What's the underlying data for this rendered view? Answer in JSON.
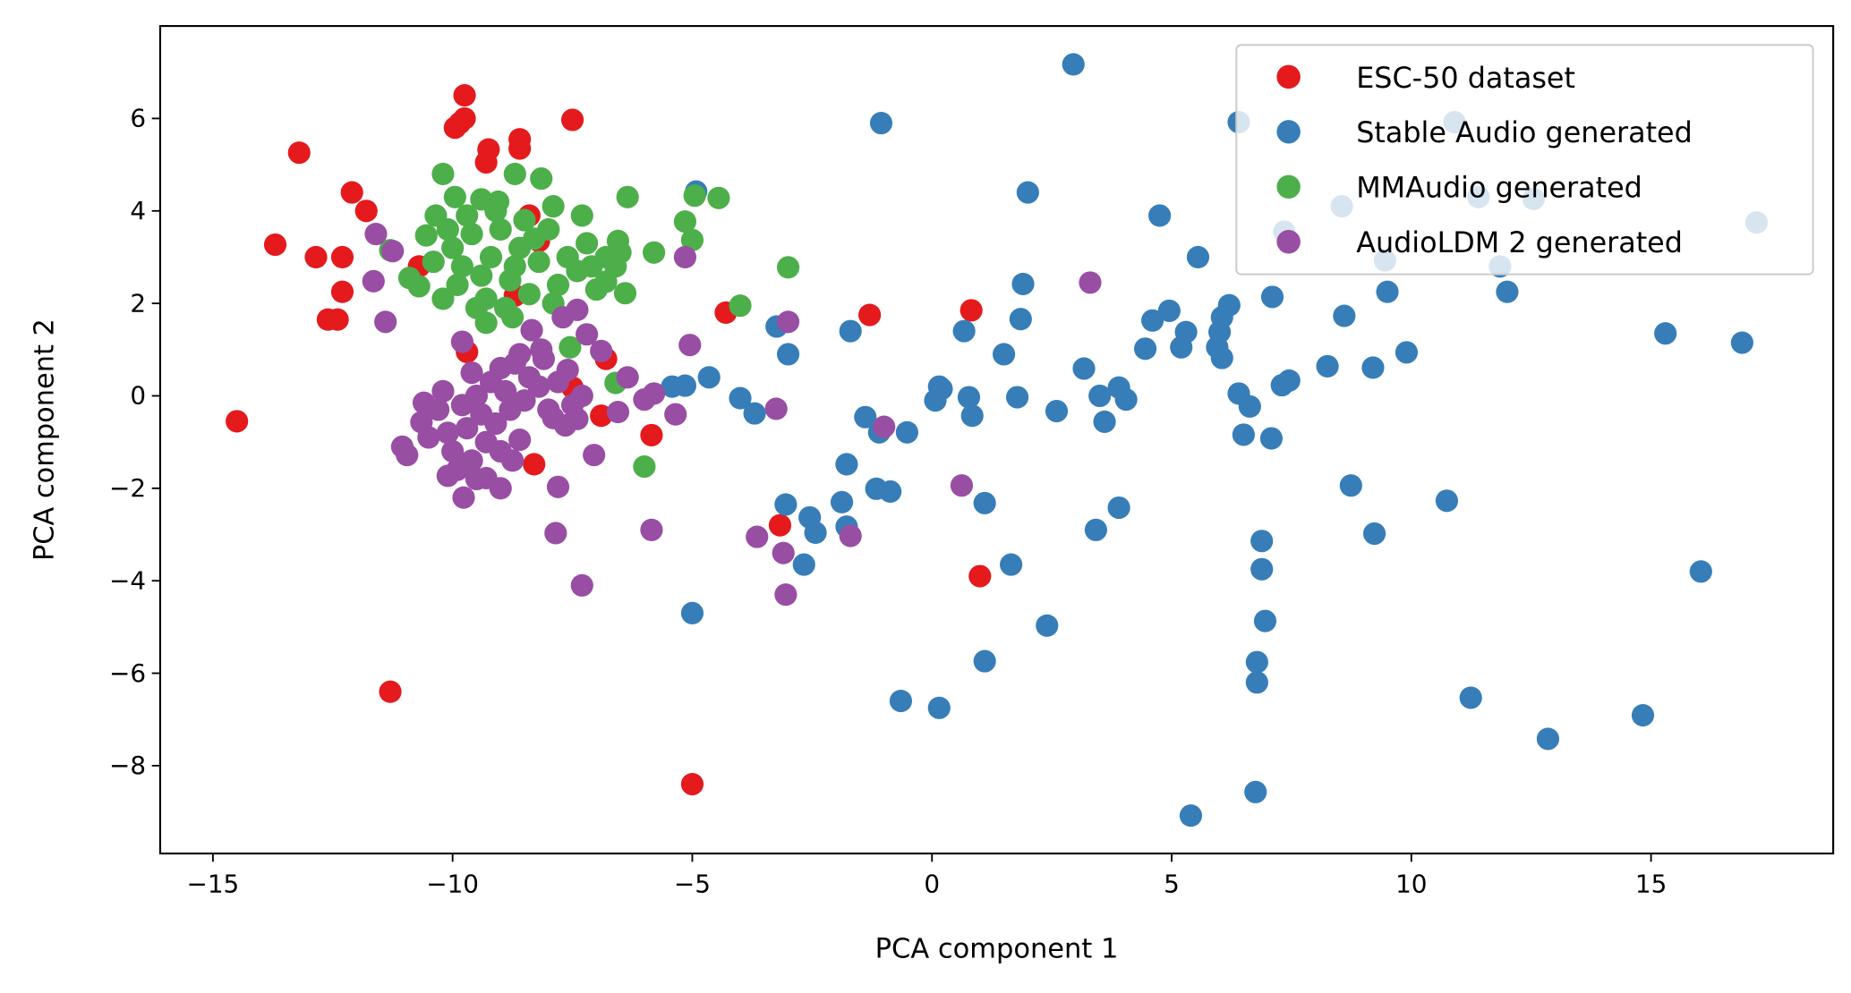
{
  "chart_data": {
    "type": "scatter",
    "title": "",
    "xlabel": "PCA component 1",
    "ylabel": "PCA component 2",
    "xlim": [
      -16.1,
      18.8
    ],
    "ylim": [
      -9.9,
      8.0
    ],
    "xticks": [
      -15,
      -10,
      -5,
      0,
      5,
      10,
      15
    ],
    "yticks": [
      -8,
      -6,
      -4,
      -2,
      0,
      2,
      4,
      6
    ],
    "xtick_labels": [
      "−15",
      "−10",
      "−5",
      "0",
      "5",
      "10",
      "15"
    ],
    "ytick_labels": [
      "−8",
      "−6",
      "−4",
      "−2",
      "0",
      "2",
      "4",
      "6"
    ],
    "grid": false,
    "legend_placement": "top-right",
    "series": [
      {
        "name": "ESC-50 dataset",
        "color": "#e41a1c",
        "points": [
          [
            -14.5,
            -0.55
          ],
          [
            -13.7,
            3.27
          ],
          [
            -13.2,
            5.26
          ],
          [
            -12.85,
            3.0
          ],
          [
            -12.6,
            1.65
          ],
          [
            -12.4,
            1.65
          ],
          [
            -12.3,
            3.0
          ],
          [
            -12.3,
            2.25
          ],
          [
            -12.1,
            4.4
          ],
          [
            -11.8,
            4.0
          ],
          [
            -11.3,
            -6.4
          ],
          [
            -10.7,
            2.8
          ],
          [
            -9.95,
            5.8
          ],
          [
            -9.75,
            6.5
          ],
          [
            -9.75,
            6.0
          ],
          [
            -9.85,
            5.9
          ],
          [
            -9.3,
            5.05
          ],
          [
            -9.25,
            5.33
          ],
          [
            -8.6,
            5.55
          ],
          [
            -8.6,
            5.35
          ],
          [
            -7.5,
            5.97
          ],
          [
            -8.4,
            3.9
          ],
          [
            -8.2,
            3.35
          ],
          [
            -8.7,
            2.17
          ],
          [
            -9.7,
            0.95
          ],
          [
            -8.3,
            -1.48
          ],
          [
            -7.5,
            0.18
          ],
          [
            -6.9,
            -0.43
          ],
          [
            -6.8,
            0.8
          ],
          [
            -5.85,
            -0.85
          ],
          [
            -4.3,
            1.8
          ],
          [
            -5.0,
            -8.4
          ],
          [
            -3.17,
            -2.8
          ],
          [
            -1.3,
            1.75
          ],
          [
            0.82,
            1.85
          ],
          [
            1.0,
            -3.9
          ]
        ]
      },
      {
        "name": "Stable Audio generated",
        "color": "#377eb8",
        "points": [
          [
            2.95,
            7.17
          ],
          [
            -1.06,
            5.9
          ],
          [
            6.4,
            5.92
          ],
          [
            10.9,
            5.92
          ],
          [
            2.0,
            4.4
          ],
          [
            4.75,
            3.9
          ],
          [
            5.55,
            3.0
          ],
          [
            8.55,
            4.1
          ],
          [
            11.4,
            4.3
          ],
          [
            12.55,
            4.26
          ],
          [
            17.2,
            3.75
          ],
          [
            7.35,
            3.55
          ],
          [
            9.45,
            2.93
          ],
          [
            11.85,
            2.8
          ],
          [
            9.5,
            2.25
          ],
          [
            12.0,
            2.25
          ],
          [
            7.1,
            2.14
          ],
          [
            6.2,
            1.96
          ],
          [
            6.05,
            1.7
          ],
          [
            4.95,
            1.84
          ],
          [
            4.6,
            1.63
          ],
          [
            5.3,
            1.38
          ],
          [
            5.2,
            1.05
          ],
          [
            5.95,
            1.05
          ],
          [
            6.05,
            0.82
          ],
          [
            6.0,
            1.38
          ],
          [
            4.45,
            1.02
          ],
          [
            8.6,
            1.73
          ],
          [
            9.9,
            0.94
          ],
          [
            9.2,
            0.61
          ],
          [
            8.25,
            0.64
          ],
          [
            15.3,
            1.35
          ],
          [
            16.9,
            1.15
          ],
          [
            1.9,
            2.42
          ],
          [
            1.85,
            1.66
          ],
          [
            1.5,
            0.9
          ],
          [
            0.67,
            1.4
          ],
          [
            3.17,
            0.59
          ],
          [
            3.9,
            0.18
          ],
          [
            3.5,
            0.0
          ],
          [
            4.05,
            -0.08
          ],
          [
            3.6,
            -0.56
          ],
          [
            2.6,
            -0.33
          ],
          [
            1.78,
            -0.03
          ],
          [
            0.84,
            -0.43
          ],
          [
            0.77,
            -0.03
          ],
          [
            0.15,
            0.2
          ],
          [
            0.07,
            -0.1
          ],
          [
            0.2,
            0.15
          ],
          [
            6.4,
            0.05
          ],
          [
            6.63,
            -0.23
          ],
          [
            6.5,
            -0.84
          ],
          [
            7.08,
            -0.92
          ],
          [
            7.3,
            0.23
          ],
          [
            7.45,
            0.33
          ],
          [
            -0.52,
            -0.79
          ],
          [
            -1.1,
            -0.79
          ],
          [
            -1.39,
            -0.46
          ],
          [
            -1.7,
            1.4
          ],
          [
            -1.78,
            -1.48
          ],
          [
            -1.88,
            -2.3
          ],
          [
            -1.78,
            -2.83
          ],
          [
            -1.16,
            -2.01
          ],
          [
            -0.87,
            -2.07
          ],
          [
            -2.43,
            -2.96
          ],
          [
            -2.55,
            -2.63
          ],
          [
            -3.05,
            -2.35
          ],
          [
            -2.67,
            -3.65
          ],
          [
            -3.7,
            -0.38
          ],
          [
            -4.0,
            -0.05
          ],
          [
            -3.0,
            0.9
          ],
          [
            -3.24,
            1.5
          ],
          [
            -4.65,
            0.4
          ],
          [
            -5.15,
            0.22
          ],
          [
            -5.42,
            0.2
          ],
          [
            -4.92,
            4.42
          ],
          [
            -5.0,
            -4.7
          ],
          [
            1.1,
            -2.32
          ],
          [
            1.65,
            -3.65
          ],
          [
            1.1,
            -5.74
          ],
          [
            2.4,
            -4.97
          ],
          [
            3.42,
            -2.9
          ],
          [
            3.9,
            -2.42
          ],
          [
            -0.65,
            -6.6
          ],
          [
            0.15,
            -6.75
          ],
          [
            5.4,
            -9.08
          ],
          [
            6.75,
            -8.57
          ],
          [
            6.78,
            -6.2
          ],
          [
            6.78,
            -5.76
          ],
          [
            6.95,
            -4.87
          ],
          [
            6.88,
            -3.75
          ],
          [
            6.88,
            -3.14
          ],
          [
            8.74,
            -1.94
          ],
          [
            9.23,
            -2.98
          ],
          [
            10.74,
            -2.27
          ],
          [
            11.24,
            -6.53
          ],
          [
            12.85,
            -7.42
          ],
          [
            14.83,
            -6.91
          ],
          [
            16.04,
            -3.8
          ]
        ]
      },
      {
        "name": "MMAudio generated",
        "color": "#4daf4a",
        "points": [
          [
            -10.2,
            4.8
          ],
          [
            -9.95,
            4.3
          ],
          [
            -10.35,
            3.9
          ],
          [
            -10.55,
            3.47
          ],
          [
            -10.9,
            2.55
          ],
          [
            -10.7,
            2.37
          ],
          [
            -10.2,
            2.1
          ],
          [
            -9.4,
            4.25
          ],
          [
            -9.05,
            4.2
          ],
          [
            -8.7,
            4.8
          ],
          [
            -8.15,
            4.7
          ],
          [
            -7.9,
            4.1
          ],
          [
            -7.3,
            3.9
          ],
          [
            -6.35,
            4.3
          ],
          [
            -5.15,
            3.77
          ],
          [
            -4.95,
            4.33
          ],
          [
            -4.45,
            4.28
          ],
          [
            -5.0,
            3.37
          ],
          [
            -5.8,
            3.1
          ],
          [
            -3.0,
            2.78
          ],
          [
            -4.0,
            1.95
          ],
          [
            -7.55,
            1.05
          ],
          [
            -6.6,
            0.28
          ],
          [
            -6.0,
            -1.53
          ],
          [
            -9.3,
            1.58
          ],
          [
            -8.75,
            1.7
          ],
          [
            -11.3,
            3.15
          ],
          [
            -6.55,
            3.35
          ],
          [
            -6.8,
            2.47
          ],
          [
            -6.4,
            2.22
          ],
          [
            -10.0,
            3.2
          ],
          [
            -9.8,
            2.8
          ],
          [
            -9.6,
            3.5
          ],
          [
            -9.4,
            2.6
          ],
          [
            -9.2,
            3.0
          ],
          [
            -9.0,
            3.6
          ],
          [
            -8.8,
            2.5
          ],
          [
            -8.6,
            3.2
          ],
          [
            -8.4,
            2.2
          ],
          [
            -8.2,
            2.9
          ],
          [
            -8.0,
            3.6
          ],
          [
            -7.8,
            2.4
          ],
          [
            -7.6,
            3.0
          ],
          [
            -7.4,
            2.7
          ],
          [
            -7.2,
            3.3
          ],
          [
            -7.0,
            2.3
          ],
          [
            -6.8,
            3.0
          ],
          [
            -9.7,
            3.9
          ],
          [
            -9.1,
            4.0
          ],
          [
            -8.5,
            3.8
          ],
          [
            -10.4,
            2.9
          ],
          [
            -9.9,
            2.4
          ],
          [
            -9.3,
            2.1
          ],
          [
            -8.7,
            2.8
          ],
          [
            -7.9,
            2.0
          ],
          [
            -7.1,
            2.8
          ],
          [
            -6.6,
            2.8
          ],
          [
            -6.5,
            3.1
          ],
          [
            -9.5,
            1.9
          ],
          [
            -8.9,
            1.9
          ],
          [
            -10.1,
            3.6
          ],
          [
            -8.3,
            3.4
          ]
        ]
      },
      {
        "name": "AudioLDM 2 generated",
        "color": "#984ea3",
        "points": [
          [
            -11.6,
            3.5
          ],
          [
            -11.25,
            3.13
          ],
          [
            -11.65,
            2.48
          ],
          [
            -11.4,
            1.6
          ],
          [
            -11.05,
            -1.1
          ],
          [
            -10.95,
            -1.28
          ],
          [
            -10.6,
            -0.15
          ],
          [
            -10.65,
            -0.57
          ],
          [
            -9.8,
            1.17
          ],
          [
            -9.77,
            -2.2
          ],
          [
            -10.1,
            -1.73
          ],
          [
            -9.0,
            -2.0
          ],
          [
            -7.8,
            -1.97
          ],
          [
            -7.85,
            -2.97
          ],
          [
            -7.3,
            -4.1
          ],
          [
            -7.05,
            -1.28
          ],
          [
            -6.55,
            -0.35
          ],
          [
            -6.35,
            0.4
          ],
          [
            -6.0,
            -0.08
          ],
          [
            -5.8,
            0.05
          ],
          [
            -5.35,
            -0.4
          ],
          [
            -5.05,
            1.1
          ],
          [
            -5.15,
            3.0
          ],
          [
            -5.85,
            -2.9
          ],
          [
            -3.65,
            -3.05
          ],
          [
            -3.25,
            -0.28
          ],
          [
            -3.1,
            -3.4
          ],
          [
            -3.05,
            -4.3
          ],
          [
            -3.0,
            1.6
          ],
          [
            -1.7,
            -3.03
          ],
          [
            -1.0,
            -0.67
          ],
          [
            0.62,
            -1.94
          ],
          [
            3.3,
            2.45
          ],
          [
            -7.7,
            1.7
          ],
          [
            -7.4,
            1.86
          ],
          [
            -7.2,
            1.33
          ],
          [
            -6.9,
            0.97
          ],
          [
            -8.6,
            0.9
          ],
          [
            -8.35,
            1.42
          ],
          [
            -8.15,
            1.0
          ],
          [
            -7.6,
            0.56
          ],
          [
            -7.9,
            -0.48
          ],
          [
            -7.65,
            -0.64
          ],
          [
            -8.6,
            -0.95
          ],
          [
            -8.75,
            -1.4
          ],
          [
            -9.3,
            -1.78
          ],
          [
            -10.3,
            -0.3
          ],
          [
            -10.1,
            -0.8
          ],
          [
            -10.0,
            -1.2
          ],
          [
            -9.8,
            -0.2
          ],
          [
            -9.7,
            -0.7
          ],
          [
            -9.6,
            -1.4
          ],
          [
            -9.5,
            0.0
          ],
          [
            -9.4,
            -0.4
          ],
          [
            -9.3,
            -1.0
          ],
          [
            -9.2,
            0.3
          ],
          [
            -9.1,
            -0.6
          ],
          [
            -9.0,
            -1.2
          ],
          [
            -8.9,
            0.1
          ],
          [
            -8.8,
            -0.3
          ],
          [
            -8.7,
            0.7
          ],
          [
            -8.5,
            -0.1
          ],
          [
            -8.4,
            0.4
          ],
          [
            -8.2,
            0.2
          ],
          [
            -8.0,
            -0.3
          ],
          [
            -7.8,
            0.3
          ],
          [
            -7.5,
            -0.2
          ],
          [
            -7.3,
            0.0
          ],
          [
            -10.5,
            -0.9
          ],
          [
            -9.9,
            -1.6
          ],
          [
            -9.5,
            -1.8
          ],
          [
            -9.6,
            0.5
          ],
          [
            -9.0,
            0.6
          ],
          [
            -10.2,
            0.1
          ],
          [
            -8.1,
            0.8
          ],
          [
            -7.4,
            -0.5
          ]
        ]
      }
    ]
  }
}
